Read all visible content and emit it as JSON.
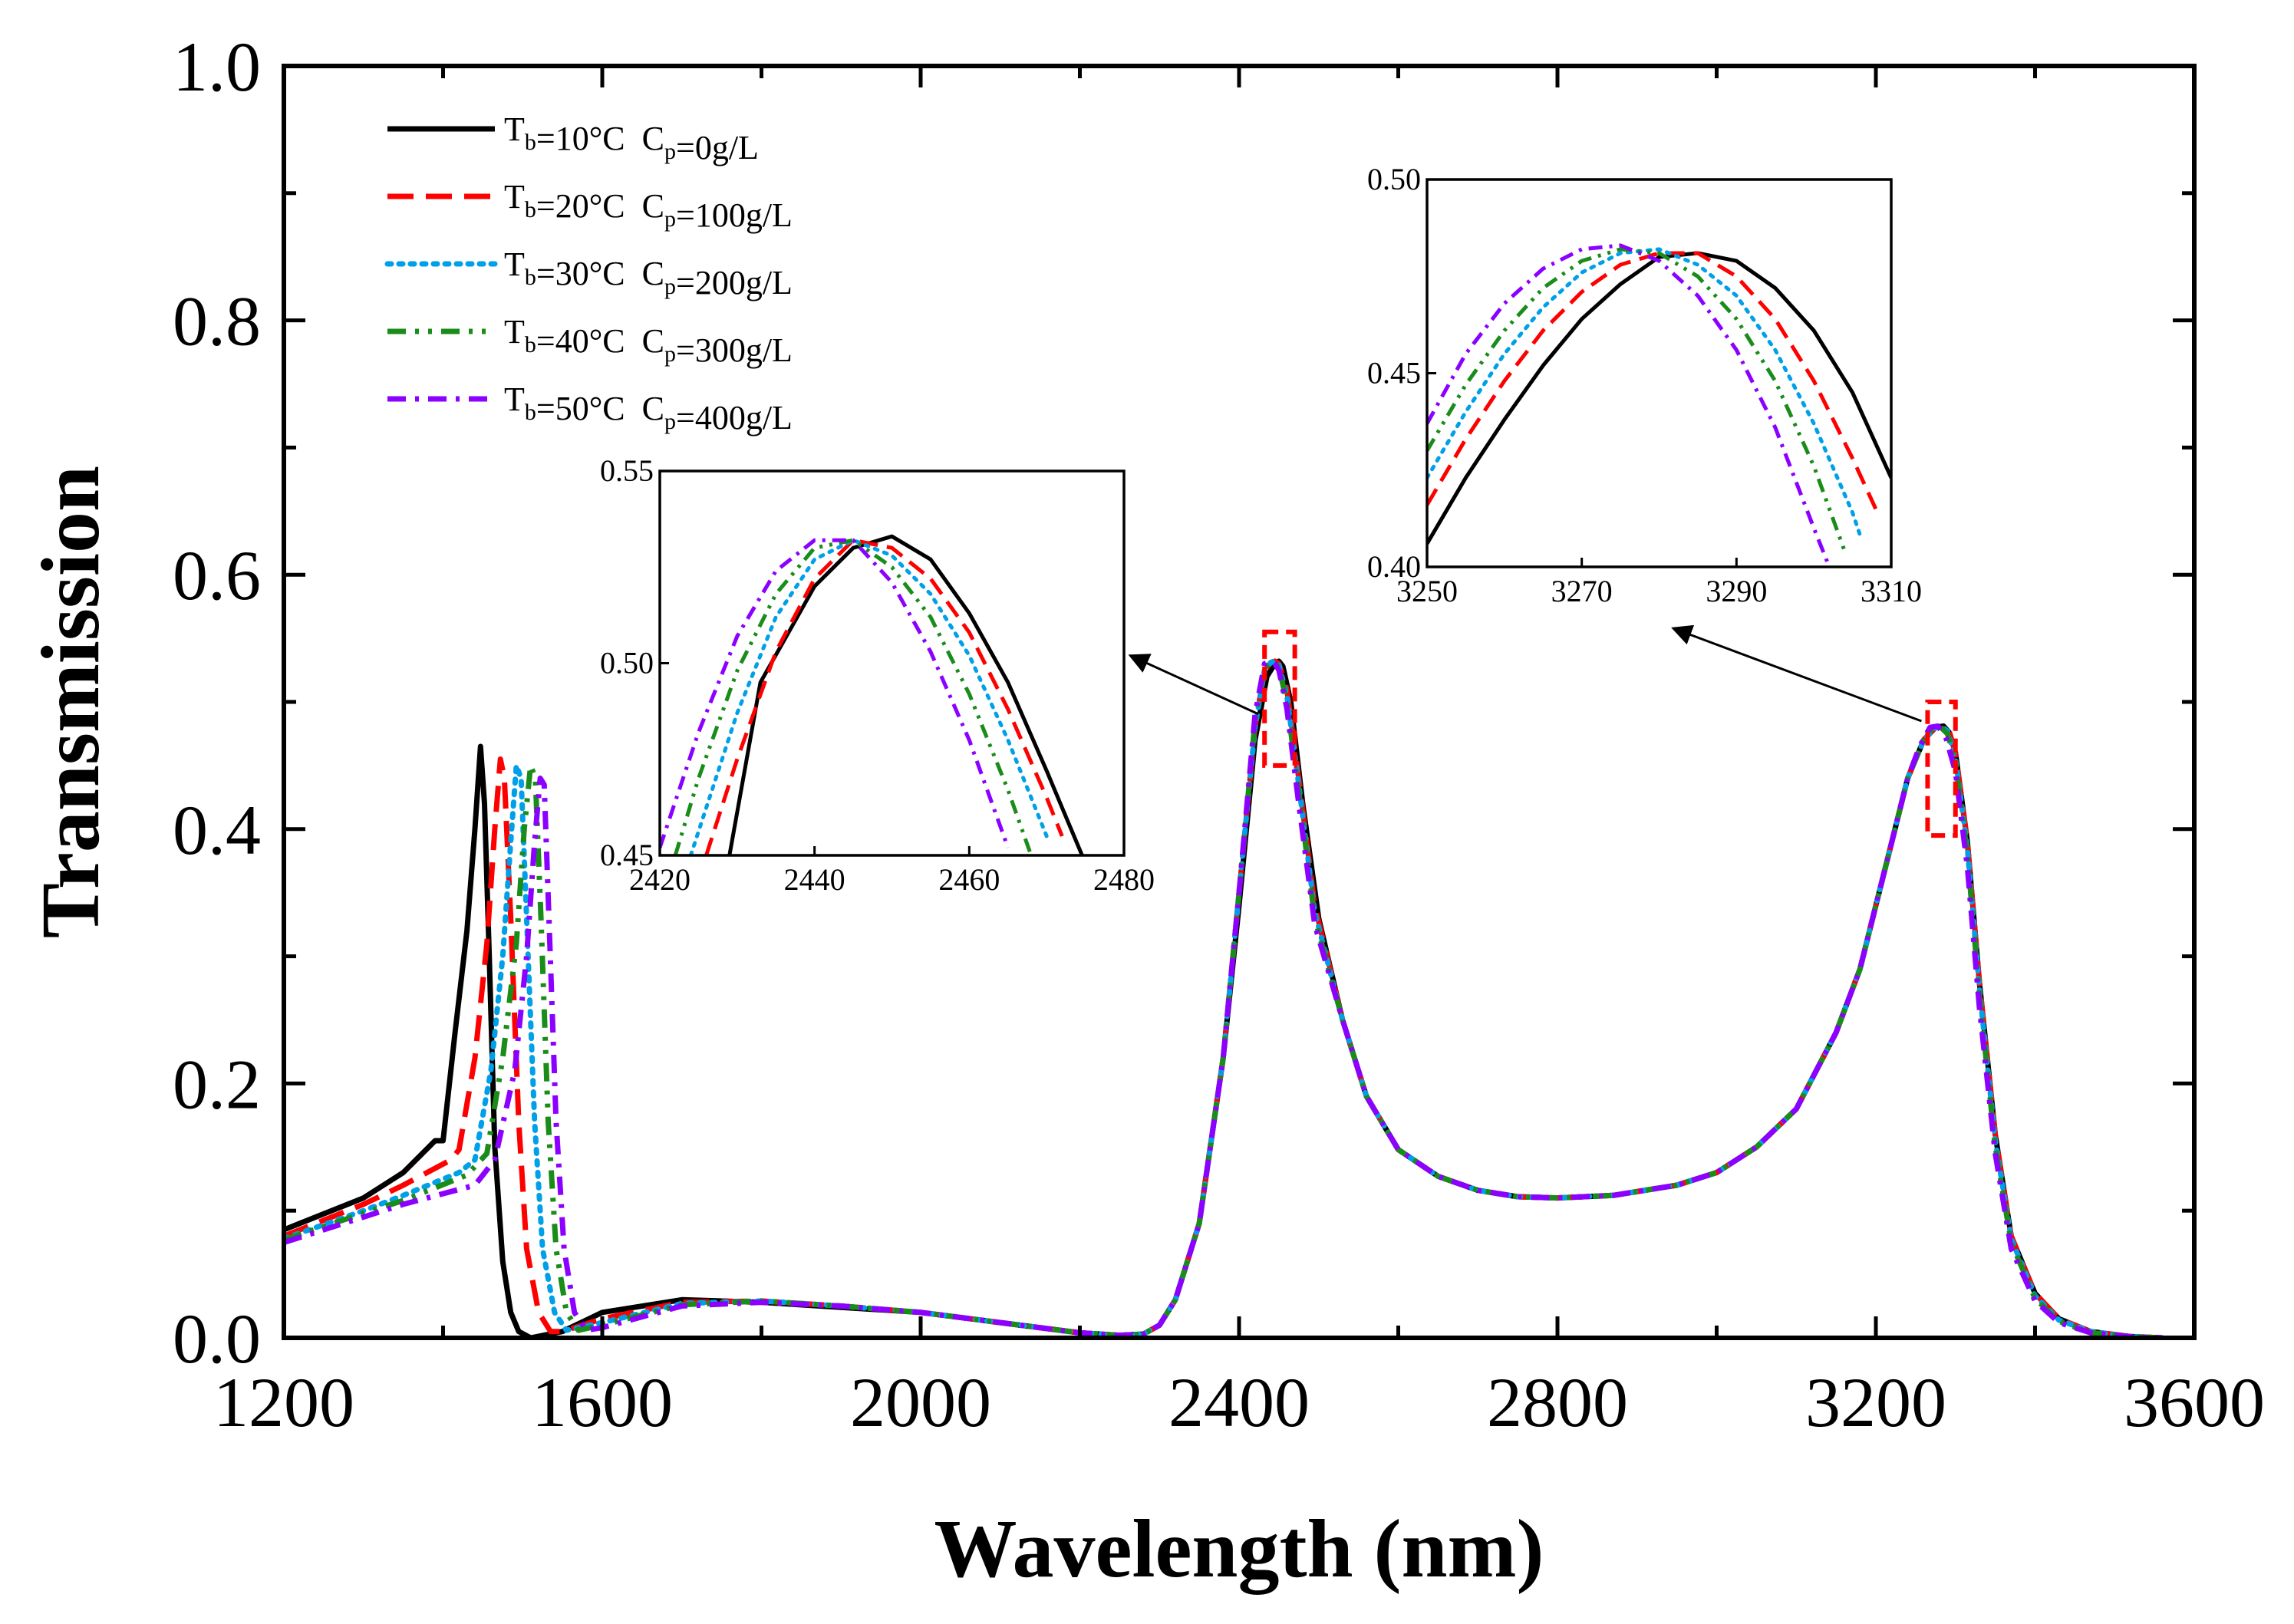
{
  "chart_data": {
    "type": "line",
    "xlabel": "Wavelength (nm)",
    "ylabel": "Transmission",
    "xlim": [
      1200,
      3600
    ],
    "ylim": [
      0,
      1.0
    ],
    "xticks": [
      1200,
      1600,
      2000,
      2400,
      2800,
      3200,
      3600
    ],
    "xtick_labels": [
      "1200",
      "1600",
      "2000",
      "2400",
      "2800",
      "3200",
      "3600"
    ],
    "yticks": [
      0,
      0.2,
      0.4,
      0.6,
      0.8,
      1.0
    ],
    "ytick_labels": [
      "0.0",
      "0.2",
      "0.4",
      "0.6",
      "0.8",
      "1.0"
    ],
    "grid": false,
    "legend_position": "top-left",
    "series": [
      {
        "name": "Tb=10°C Cp=0g/L",
        "T_b": "10",
        "C_p": "0",
        "color": "#000000",
        "style": "solid",
        "x": [
          1200,
          1300,
          1350,
          1390,
          1400,
          1415,
          1430,
          1440,
          1447,
          1452,
          1458,
          1465,
          1475,
          1485,
          1495,
          1510,
          1550,
          1600,
          1700,
          1800,
          1900,
          2000,
          2100,
          2200,
          2250,
          2280,
          2300,
          2320,
          2350,
          2380,
          2400,
          2420,
          2435,
          2445,
          2450,
          2455,
          2465,
          2480,
          2500,
          2530,
          2560,
          2600,
          2650,
          2700,
          2750,
          2800,
          2870,
          2950,
          3000,
          3050,
          3100,
          3150,
          3180,
          3200,
          3220,
          3240,
          3260,
          3275,
          3285,
          3292,
          3300,
          3315,
          3330,
          3350,
          3370,
          3400,
          3430,
          3470,
          3520,
          3560
        ],
        "y": [
          0.085,
          0.11,
          0.13,
          0.155,
          0.155,
          0.24,
          0.32,
          0.4,
          0.465,
          0.42,
          0.3,
          0.15,
          0.06,
          0.02,
          0.005,
          0.0,
          0.005,
          0.02,
          0.03,
          0.028,
          0.024,
          0.02,
          0.012,
          0.004,
          0.002,
          0.003,
          0.01,
          0.03,
          0.09,
          0.22,
          0.34,
          0.47,
          0.52,
          0.53,
          0.532,
          0.528,
          0.5,
          0.42,
          0.33,
          0.25,
          0.19,
          0.148,
          0.127,
          0.116,
          0.111,
          0.11,
          0.112,
          0.12,
          0.13,
          0.15,
          0.18,
          0.24,
          0.29,
          0.34,
          0.39,
          0.44,
          0.47,
          0.48,
          0.481,
          0.476,
          0.46,
          0.39,
          0.28,
          0.16,
          0.08,
          0.035,
          0.015,
          0.005,
          0.001,
          0.0
        ]
      },
      {
        "name": "Tb=20°C Cp=100g/L",
        "T_b": "20",
        "C_p": "100",
        "color": "#ff0000",
        "style": "dashed",
        "x": [
          1200,
          1300,
          1350,
          1410,
          1420,
          1440,
          1455,
          1465,
          1472,
          1477,
          1485,
          1495,
          1505,
          1520,
          1535,
          1550,
          1600,
          1700,
          1800,
          1900,
          2000,
          2100,
          2200,
          2250,
          2280,
          2300,
          2320,
          2350,
          2380,
          2400,
          2420,
          2432,
          2440,
          2445,
          2450,
          2460,
          2475,
          2495,
          2530,
          2560,
          2600,
          2650,
          2700,
          2750,
          2800,
          2870,
          2950,
          3000,
          3050,
          3100,
          3150,
          3180,
          3200,
          3220,
          3240,
          3260,
          3275,
          3283,
          3292,
          3300,
          3315,
          3330,
          3350,
          3370,
          3400,
          3430,
          3470,
          3520,
          3560
        ],
        "y": [
          0.08,
          0.105,
          0.12,
          0.14,
          0.148,
          0.22,
          0.31,
          0.4,
          0.455,
          0.44,
          0.33,
          0.17,
          0.07,
          0.02,
          0.005,
          0.005,
          0.015,
          0.028,
          0.029,
          0.025,
          0.02,
          0.012,
          0.004,
          0.002,
          0.003,
          0.01,
          0.03,
          0.09,
          0.22,
          0.35,
          0.48,
          0.525,
          0.531,
          0.532,
          0.53,
          0.51,
          0.44,
          0.34,
          0.25,
          0.19,
          0.148,
          0.127,
          0.116,
          0.111,
          0.11,
          0.112,
          0.12,
          0.13,
          0.15,
          0.18,
          0.24,
          0.29,
          0.34,
          0.39,
          0.44,
          0.47,
          0.48,
          0.481,
          0.477,
          0.46,
          0.39,
          0.28,
          0.16,
          0.08,
          0.035,
          0.015,
          0.005,
          0.001,
          0.0
        ]
      },
      {
        "name": "Tb=30°C Cp=200g/L",
        "T_b": "30",
        "C_p": "200",
        "color": "#00a0e8",
        "style": "dotted",
        "x": [
          1200,
          1300,
          1350,
          1420,
          1440,
          1460,
          1475,
          1485,
          1492,
          1498,
          1505,
          1515,
          1525,
          1540,
          1555,
          1600,
          1700,
          1800,
          1900,
          2000,
          2100,
          2200,
          2250,
          2280,
          2300,
          2320,
          2350,
          2380,
          2400,
          2420,
          2432,
          2440,
          2445,
          2450,
          2460,
          2475,
          2495,
          2530,
          2560,
          2600,
          2650,
          2700,
          2750,
          2800,
          2870,
          2950,
          3000,
          3050,
          3100,
          3150,
          3180,
          3200,
          3220,
          3240,
          3260,
          3275,
          3282,
          3290,
          3300,
          3315,
          3330,
          3350,
          3370,
          3400,
          3430,
          3470,
          3520,
          3560
        ],
        "y": [
          0.078,
          0.1,
          0.112,
          0.13,
          0.14,
          0.21,
          0.3,
          0.39,
          0.45,
          0.44,
          0.33,
          0.17,
          0.07,
          0.02,
          0.006,
          0.012,
          0.027,
          0.029,
          0.025,
          0.02,
          0.012,
          0.004,
          0.002,
          0.003,
          0.01,
          0.03,
          0.09,
          0.22,
          0.35,
          0.48,
          0.525,
          0.531,
          0.532,
          0.529,
          0.505,
          0.435,
          0.335,
          0.25,
          0.19,
          0.148,
          0.127,
          0.116,
          0.111,
          0.11,
          0.112,
          0.12,
          0.13,
          0.15,
          0.18,
          0.24,
          0.29,
          0.34,
          0.39,
          0.44,
          0.47,
          0.48,
          0.481,
          0.477,
          0.455,
          0.385,
          0.275,
          0.155,
          0.078,
          0.033,
          0.014,
          0.005,
          0.001,
          0.0
        ]
      },
      {
        "name": "Tb=40°C Cp=300g/L",
        "T_b": "40",
        "C_p": "300",
        "color": "#1a8c1a",
        "style": "dashdotdot",
        "x": [
          1200,
          1300,
          1350,
          1430,
          1455,
          1475,
          1492,
          1502,
          1510,
          1516,
          1523,
          1532,
          1542,
          1555,
          1570,
          1600,
          1700,
          1800,
          1900,
          2000,
          2100,
          2200,
          2250,
          2280,
          2300,
          2320,
          2350,
          2380,
          2400,
          2420,
          2432,
          2440,
          2445,
          2450,
          2460,
          2475,
          2495,
          2530,
          2560,
          2600,
          2650,
          2700,
          2750,
          2800,
          2870,
          2950,
          3000,
          3050,
          3100,
          3150,
          3180,
          3200,
          3220,
          3240,
          3260,
          3270,
          3280,
          3290,
          3300,
          3315,
          3330,
          3350,
          3370,
          3400,
          3430,
          3470,
          3520,
          3560
        ],
        "y": [
          0.077,
          0.098,
          0.108,
          0.128,
          0.145,
          0.22,
          0.31,
          0.4,
          0.45,
          0.44,
          0.33,
          0.17,
          0.07,
          0.02,
          0.006,
          0.01,
          0.026,
          0.029,
          0.025,
          0.02,
          0.012,
          0.004,
          0.002,
          0.003,
          0.01,
          0.03,
          0.09,
          0.22,
          0.35,
          0.485,
          0.527,
          0.531,
          0.531,
          0.527,
          0.5,
          0.43,
          0.33,
          0.25,
          0.19,
          0.148,
          0.127,
          0.116,
          0.111,
          0.11,
          0.112,
          0.12,
          0.13,
          0.15,
          0.18,
          0.24,
          0.29,
          0.34,
          0.39,
          0.44,
          0.47,
          0.478,
          0.481,
          0.475,
          0.452,
          0.38,
          0.27,
          0.15,
          0.075,
          0.031,
          0.013,
          0.004,
          0.001,
          0.0
        ]
      },
      {
        "name": "Tb=50°C Cp=400g/L",
        "T_b": "50",
        "C_p": "400",
        "color": "#8b00ff",
        "style": "dashdot",
        "x": [
          1200,
          1300,
          1350,
          1440,
          1465,
          1490,
          1505,
          1515,
          1522,
          1527,
          1533,
          1542,
          1552,
          1565,
          1580,
          1600,
          1700,
          1800,
          1900,
          2000,
          2100,
          2200,
          2250,
          2280,
          2300,
          2320,
          2350,
          2380,
          2400,
          2420,
          2432,
          2440,
          2445,
          2450,
          2460,
          2475,
          2495,
          2530,
          2560,
          2600,
          2650,
          2700,
          2750,
          2800,
          2870,
          2950,
          3000,
          3050,
          3100,
          3150,
          3180,
          3200,
          3220,
          3240,
          3255,
          3268,
          3278,
          3288,
          3300,
          3315,
          3330,
          3350,
          3370,
          3400,
          3430,
          3470,
          3520,
          3560
        ],
        "y": [
          0.075,
          0.095,
          0.105,
          0.12,
          0.14,
          0.21,
          0.3,
          0.39,
          0.44,
          0.435,
          0.33,
          0.17,
          0.07,
          0.02,
          0.006,
          0.008,
          0.025,
          0.028,
          0.025,
          0.02,
          0.012,
          0.004,
          0.002,
          0.003,
          0.01,
          0.03,
          0.09,
          0.22,
          0.35,
          0.49,
          0.53,
          0.532,
          0.53,
          0.525,
          0.495,
          0.42,
          0.325,
          0.25,
          0.19,
          0.148,
          0.127,
          0.116,
          0.111,
          0.11,
          0.112,
          0.12,
          0.13,
          0.15,
          0.18,
          0.24,
          0.29,
          0.34,
          0.39,
          0.44,
          0.465,
          0.48,
          0.481,
          0.472,
          0.445,
          0.37,
          0.26,
          0.145,
          0.07,
          0.029,
          0.012,
          0.004,
          0.001,
          0.0
        ]
      }
    ],
    "insets": [
      {
        "id": "inset-2450",
        "xlim": [
          2420,
          2480
        ],
        "ylim": [
          0.45,
          0.55
        ],
        "xticks": [
          2420,
          2440,
          2460,
          2480
        ],
        "xtick_labels": [
          "2420",
          "2440",
          "2460",
          "2480"
        ],
        "yticks": [
          0.45,
          0.5,
          0.55
        ],
        "ytick_labels": [
          "0.45",
          "0.50",
          "0.55"
        ],
        "zoom_box": {
          "x": [
            2432,
            2470
          ],
          "y": [
            0.45,
            0.555
          ]
        },
        "series": [
          {
            "x": [
              2429,
              2433,
              2440,
              2445,
              2450,
              2455,
              2460,
              2465,
              2470,
              2475
            ],
            "y": [
              0.45,
              0.495,
              0.52,
              0.53,
              0.533,
              0.527,
              0.513,
              0.495,
              0.472,
              0.448
            ]
          },
          {
            "x": [
              2426,
              2430,
              2435,
              2440,
              2445,
              2450,
              2455,
              2460,
              2465,
              2470,
              2472
            ],
            "y": [
              0.45,
              0.475,
              0.503,
              0.522,
              0.532,
              0.53,
              0.522,
              0.508,
              0.488,
              0.465,
              0.455
            ]
          },
          {
            "x": [
              2424,
              2430,
              2435,
              2440,
              2445,
              2450,
              2455,
              2460,
              2465,
              2470
            ],
            "y": [
              0.45,
              0.487,
              0.512,
              0.527,
              0.532,
              0.528,
              0.518,
              0.502,
              0.48,
              0.455
            ]
          },
          {
            "x": [
              2422,
              2425,
              2430,
              2435,
              2440,
              2445,
              2450,
              2455,
              2460,
              2465,
              2468
            ],
            "y": [
              0.45,
              0.47,
              0.498,
              0.518,
              0.53,
              0.532,
              0.525,
              0.512,
              0.492,
              0.467,
              0.45
            ]
          },
          {
            "x": [
              2420,
              2425,
              2430,
              2435,
              2440,
              2445,
              2450,
              2455,
              2460,
              2465
            ],
            "y": [
              0.452,
              0.482,
              0.507,
              0.524,
              0.532,
              0.532,
              0.521,
              0.503,
              0.48,
              0.452
            ]
          }
        ]
      },
      {
        "id": "inset-3280",
        "xlim": [
          3250,
          3310
        ],
        "ylim": [
          0.4,
          0.5
        ],
        "xticks": [
          3250,
          3270,
          3290,
          3310
        ],
        "xtick_labels": [
          "3250",
          "3270",
          "3290",
          "3310"
        ],
        "yticks": [
          0.4,
          0.45,
          0.5
        ],
        "ytick_labels": [
          "0.40",
          "0.45",
          "0.50"
        ],
        "zoom_box": {
          "x": [
            3265,
            3300
          ],
          "y": [
            0.395,
            0.5
          ]
        },
        "series": [
          {
            "x": [
              3250,
              3255,
              3260,
              3265,
              3270,
              3275,
              3280,
              3285,
              3290,
              3295,
              3300,
              3305,
              3310
            ],
            "y": [
              0.406,
              0.423,
              0.438,
              0.452,
              0.464,
              0.473,
              0.48,
              0.481,
              0.479,
              0.472,
              0.461,
              0.445,
              0.423
            ]
          },
          {
            "x": [
              3250,
              3255,
              3260,
              3265,
              3270,
              3275,
              3280,
              3285,
              3290,
              3295,
              3300,
              3305,
              3308
            ],
            "y": [
              0.416,
              0.433,
              0.448,
              0.461,
              0.471,
              0.478,
              0.481,
              0.481,
              0.475,
              0.464,
              0.448,
              0.428,
              0.415
            ]
          },
          {
            "x": [
              3250,
              3255,
              3260,
              3265,
              3270,
              3275,
              3280,
              3285,
              3290,
              3295,
              3300,
              3305,
              3306
            ],
            "y": [
              0.423,
              0.44,
              0.455,
              0.467,
              0.476,
              0.481,
              0.482,
              0.478,
              0.47,
              0.456,
              0.437,
              0.414,
              0.408
            ]
          },
          {
            "x": [
              3250,
              3255,
              3260,
              3265,
              3270,
              3275,
              3280,
              3285,
              3290,
              3295,
              3300,
              3304
            ],
            "y": [
              0.43,
              0.447,
              0.461,
              0.472,
              0.479,
              0.482,
              0.481,
              0.475,
              0.464,
              0.448,
              0.426,
              0.404
            ]
          },
          {
            "x": [
              3250,
              3255,
              3260,
              3265,
              3270,
              3275,
              3280,
              3285,
              3290,
              3295,
              3300,
              3302
            ],
            "y": [
              0.437,
              0.455,
              0.468,
              0.477,
              0.482,
              0.483,
              0.479,
              0.47,
              0.456,
              0.436,
              0.41,
              0.4
            ]
          }
        ]
      }
    ]
  }
}
